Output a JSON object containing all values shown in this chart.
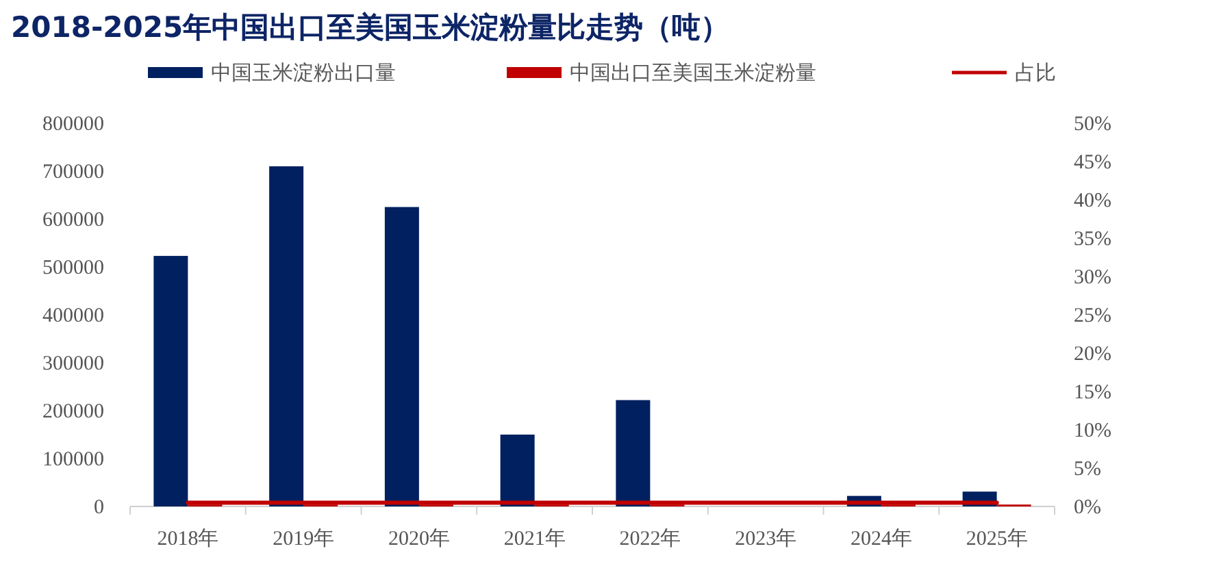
{
  "chart_data": {
    "type": "bar",
    "title": "2018-2025年中国出口至美国玉米淀粉量比走势（吨）",
    "categories": [
      "2018年",
      "2019年",
      "2020年",
      "2021年",
      "2022年",
      "2023年",
      "2024年",
      "2025年"
    ],
    "series": [
      {
        "name": "中国玉米淀粉出口量",
        "color": "#002060",
        "values": [
          523000,
          710000,
          625000,
          150000,
          222000,
          0,
          22000,
          31000
        ]
      },
      {
        "name": "中国出口至美国玉米淀粉量",
        "color": "#c00000",
        "values": [
          4000,
          4000,
          4000,
          4000,
          4000,
          0,
          4000,
          4000
        ]
      },
      {
        "name": "占比",
        "type": "line",
        "axis": "y2",
        "color": "#c00000",
        "values": [
          0.5,
          0.5,
          0.5,
          0.5,
          0.5,
          0.5,
          0.5,
          0.5
        ]
      }
    ],
    "ylim": [
      0,
      800000
    ],
    "yticks": [
      0,
      100000,
      200000,
      300000,
      400000,
      500000,
      600000,
      700000,
      800000
    ],
    "y2lim": [
      0,
      50
    ],
    "y2ticks": [
      {
        "value": 0,
        "label": "0%"
      },
      {
        "value": 5,
        "label": "5%"
      },
      {
        "value": 10,
        "label": "10%"
      },
      {
        "value": 15,
        "label": "15%"
      },
      {
        "value": 20,
        "label": "20%"
      },
      {
        "value": 25,
        "label": "25%"
      },
      {
        "value": 30,
        "label": "30%"
      },
      {
        "value": 35,
        "label": "35%"
      },
      {
        "value": 40,
        "label": "40%"
      },
      {
        "value": 45,
        "label": "45%"
      },
      {
        "value": 50,
        "label": "50%"
      }
    ],
    "legend": "top",
    "grid": false
  }
}
